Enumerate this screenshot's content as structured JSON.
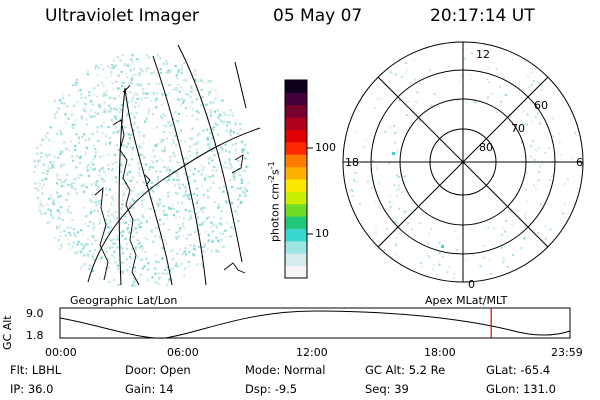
{
  "header": {
    "instrument": "Ultraviolet Imager",
    "date": "05 May 07",
    "time": "20:17:14 UT"
  },
  "colorbar": {
    "unit_label": "photon cm",
    "unit_exp1": "-2",
    "unit_s": "s",
    "unit_exp2": "-1",
    "ticks": [
      {
        "label": "100",
        "value": 100
      },
      {
        "label": "10",
        "value": 10
      }
    ],
    "colors": [
      "#f5f5f5",
      "#d6ecec",
      "#9ee6e6",
      "#3ad6d0",
      "#22c87a",
      "#70dc2a",
      "#c8f000",
      "#ffe800",
      "#ffb000",
      "#ff7a00",
      "#ff2a00",
      "#e00000",
      "#b0001e",
      "#7a0030",
      "#44003a",
      "#100020"
    ]
  },
  "geographic_panel": {
    "label": "Geographic Lat/Lon"
  },
  "polar_panel": {
    "label": "Apex MLat/MLT",
    "mlt_labels": {
      "top": "12",
      "bottom": "0",
      "left": "18",
      "right": "6"
    },
    "lat_labels": [
      "60",
      "70",
      "80"
    ]
  },
  "altitude_plot": {
    "ylabel": "GC Alt",
    "y_ticks": [
      "9.0",
      "1.8"
    ],
    "x_ticks": [
      "00:00",
      "06:00",
      "12:00",
      "18:00",
      "23:59"
    ],
    "ylim": [
      1.8,
      9.0
    ],
    "current_time_hours": 20.29,
    "marker_color": "#e00000"
  },
  "footer": {
    "row1": [
      {
        "key": "Flt:",
        "value": "LBHL"
      },
      {
        "key": "Door:",
        "value": "Open"
      },
      {
        "key": "Mode:",
        "value": "Normal"
      },
      {
        "key": "GC Alt:",
        "value": "5.2 Re"
      },
      {
        "key": "GLat:",
        "value": "-65.4"
      }
    ],
    "row2": [
      {
        "key": "IP:",
        "value": "36.0"
      },
      {
        "key": "Gain:",
        "value": "14"
      },
      {
        "key": "Dsp:",
        "value": "-9.5"
      },
      {
        "key": "Seq:",
        "value": "39"
      },
      {
        "key": "GLon:",
        "value": "131.0"
      }
    ]
  }
}
